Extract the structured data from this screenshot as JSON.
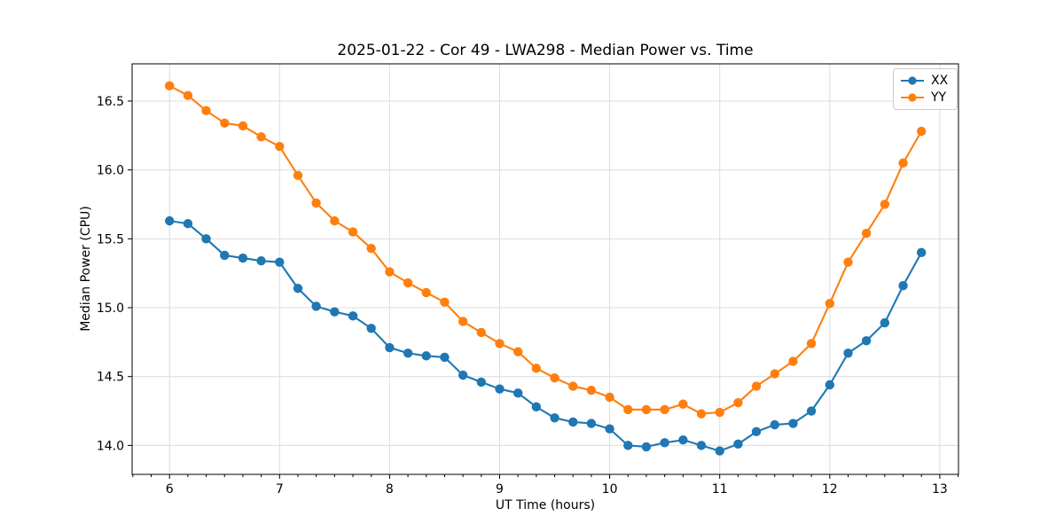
{
  "chart_data": {
    "type": "line",
    "title": "2025-01-22 - Cor 49 - LWA298 - Median Power vs. Time",
    "xlabel": "UT Time (hours)",
    "ylabel": "Median Power (CPU)",
    "x": [
      6.0,
      6.167,
      6.333,
      6.5,
      6.667,
      6.833,
      7.0,
      7.167,
      7.333,
      7.5,
      7.667,
      7.833,
      8.0,
      8.167,
      8.333,
      8.5,
      8.667,
      8.833,
      9.0,
      9.167,
      9.333,
      9.5,
      9.667,
      9.833,
      10.0,
      10.167,
      10.333,
      10.5,
      10.667,
      10.833,
      11.0,
      11.167,
      11.333,
      11.5,
      11.667,
      11.833,
      12.0,
      12.167,
      12.333,
      12.5,
      12.667,
      12.833
    ],
    "series": [
      {
        "name": "XX",
        "color": "#1f77b4",
        "marker": "circle",
        "values": [
          15.63,
          15.61,
          15.5,
          15.38,
          15.36,
          15.34,
          15.33,
          15.14,
          15.01,
          14.97,
          14.94,
          14.85,
          14.71,
          14.67,
          14.65,
          14.64,
          14.51,
          14.46,
          14.41,
          14.38,
          14.28,
          14.2,
          14.17,
          14.16,
          14.12,
          14.0,
          13.99,
          14.02,
          14.04,
          14.0,
          13.96,
          14.01,
          14.1,
          14.15,
          14.16,
          14.25,
          14.44,
          14.67,
          14.76,
          14.89,
          15.16,
          15.4
        ]
      },
      {
        "name": "YY",
        "color": "#ff7f0e",
        "marker": "circle",
        "values": [
          16.61,
          16.54,
          16.43,
          16.34,
          16.32,
          16.24,
          16.17,
          15.96,
          15.76,
          15.63,
          15.55,
          15.43,
          15.26,
          15.18,
          15.11,
          15.04,
          14.9,
          14.82,
          14.74,
          14.68,
          14.56,
          14.49,
          14.43,
          14.4,
          14.35,
          14.26,
          14.26,
          14.26,
          14.3,
          14.23,
          14.24,
          14.31,
          14.43,
          14.52,
          14.61,
          14.74,
          15.03,
          15.33,
          15.54,
          15.75,
          16.05,
          16.28
        ]
      }
    ],
    "xlim": [
      5.66,
      13.17
    ],
    "ylim": [
      13.79,
      16.77
    ],
    "xticks": [
      6,
      7,
      8,
      9,
      10,
      11,
      12,
      13
    ],
    "xtick_labels": [
      "6",
      "7",
      "8",
      "9",
      "10",
      "11",
      "12",
      "13"
    ],
    "yticks": [
      14.0,
      14.5,
      15.0,
      15.5,
      16.0,
      16.5
    ],
    "ytick_labels": [
      "14.0",
      "14.5",
      "15.0",
      "15.5",
      "16.0",
      "16.5"
    ],
    "minor_xtick_step_hours": 0.1667,
    "grid": true,
    "grid_color": "#dcdcdc",
    "legend": {
      "position": "upper right",
      "entries": [
        "XX",
        "YY"
      ]
    }
  }
}
